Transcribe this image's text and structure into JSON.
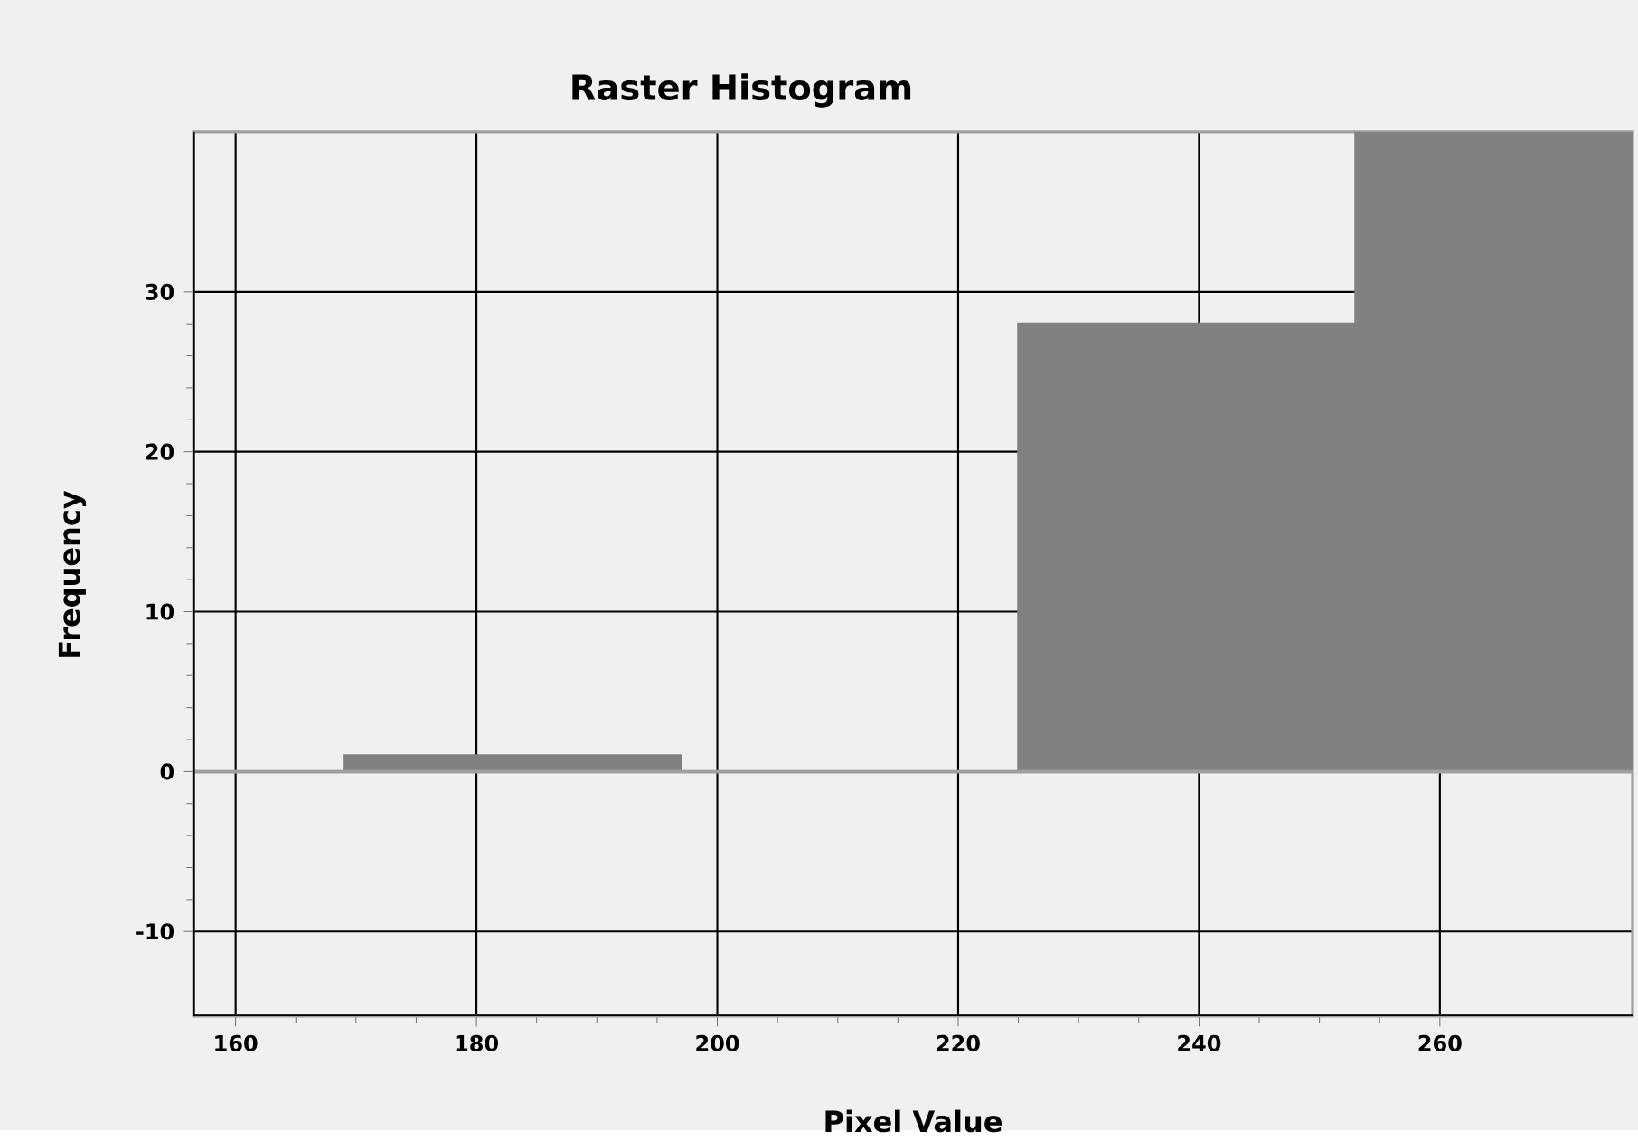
{
  "chart_data": {
    "type": "histogram",
    "title": "Raster Histogram",
    "xlabel": "Pixel Value",
    "ylabel": "Frequency",
    "bins": [
      169,
      197,
      225,
      253,
      276
    ],
    "values": [
      1,
      0,
      28,
      40
    ],
    "color": "#808080",
    "xlim": [
      156.5,
      276
    ],
    "ylim": [
      -15.3,
      40
    ],
    "xticks": [
      160,
      180,
      200,
      220,
      240,
      260
    ],
    "yticks": [
      -10,
      0,
      10,
      20,
      30
    ],
    "ref_lines": [
      {
        "axis": "y",
        "value": 0,
        "color": "#a0a0a0"
      }
    ],
    "grid": true
  }
}
